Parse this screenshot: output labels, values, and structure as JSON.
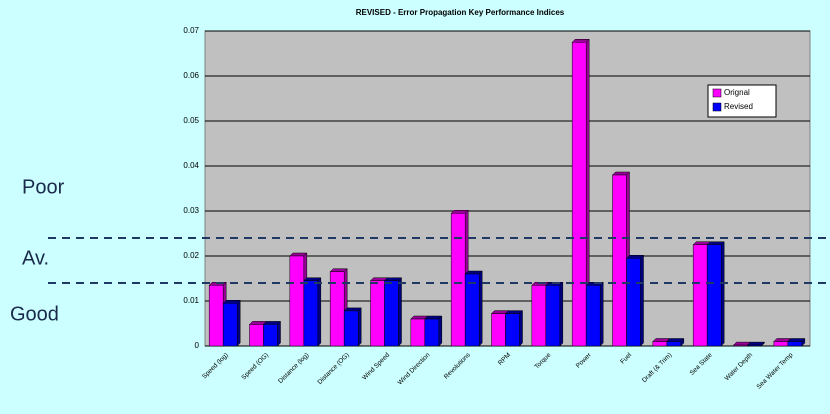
{
  "chart_data": {
    "type": "bar",
    "title": "REVISED - Error Propagation Key Performance Indices",
    "categories": [
      "Speed (log)",
      "Speed (OG)",
      "Distance (log)",
      "Distance (OG)",
      "Wind Speed",
      "Wind Direction",
      "Revolutions",
      "RPM",
      "Torque",
      "Power",
      "Fuel",
      "Draft (& Trim)",
      "Sea State",
      "Water Depth",
      "Sea Water Temp"
    ],
    "series": [
      {
        "name": "Orignal",
        "color": "#ff00ff",
        "values": [
          0.0135,
          0.0048,
          0.02,
          0.0165,
          0.0145,
          0.006,
          0.0295,
          0.0072,
          0.0135,
          0.0675,
          0.038,
          0.001,
          0.0225,
          0.0002,
          0.001
        ]
      },
      {
        "name": "Revised",
        "color": "#0000ff",
        "values": [
          0.0095,
          0.0048,
          0.0145,
          0.0078,
          0.0145,
          0.006,
          0.016,
          0.0072,
          0.0135,
          0.0135,
          0.0195,
          0.001,
          0.0225,
          0.0002,
          0.001
        ]
      }
    ],
    "ylim": [
      0,
      0.07
    ],
    "yticks": [
      0,
      0.01,
      0.02,
      0.03,
      0.04,
      0.05,
      0.06,
      0.07
    ],
    "grid": true,
    "legend": "upper right",
    "annotations": [
      "Poor",
      "Av.",
      "Good"
    ]
  }
}
